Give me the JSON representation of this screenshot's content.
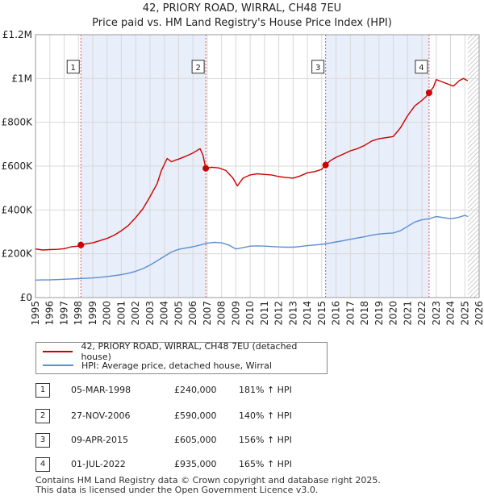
{
  "chart_data": {
    "type": "line",
    "title": "42, PRIORY ROAD, WIRRAL, CH48 7EU",
    "subtitle": "Price paid vs. HM Land Registry's House Price Index (HPI)",
    "xlabel": "",
    "ylabel": "",
    "xlim": [
      1995,
      2026
    ],
    "ylim": [
      0,
      1200000
    ],
    "x_ticks": [
      "1995",
      "1996",
      "1997",
      "1998",
      "1999",
      "2000",
      "2001",
      "2002",
      "2003",
      "2004",
      "2005",
      "2006",
      "2007",
      "2008",
      "2009",
      "2010",
      "2011",
      "2012",
      "2013",
      "2014",
      "2015",
      "2016",
      "2017",
      "2018",
      "2019",
      "2020",
      "2021",
      "2022",
      "2023",
      "2024",
      "2025",
      "2026"
    ],
    "y_ticks": [
      {
        "value": 0,
        "label": "£0"
      },
      {
        "value": 200000,
        "label": "£200K"
      },
      {
        "value": 400000,
        "label": "£400K"
      },
      {
        "value": 600000,
        "label": "£600K"
      },
      {
        "value": 800000,
        "label": "£800K"
      },
      {
        "value": 1000000,
        "label": "£1M"
      },
      {
        "value": 1200000,
        "label": "£1.2M"
      }
    ],
    "series": [
      {
        "name": "42, PRIORY ROAD, WIRRAL, CH48 7EU (detached house)",
        "color": "#cc0000",
        "x": [
          1995.0,
          1995.5,
          1996.0,
          1996.5,
          1997.0,
          1997.5,
          1998.0,
          1998.17,
          1998.5,
          1999.0,
          1999.5,
          2000.0,
          2000.5,
          2001.0,
          2001.5,
          2002.0,
          2002.5,
          2003.0,
          2003.5,
          2003.8,
          2004.2,
          2004.5,
          2004.8,
          2005.0,
          2005.5,
          2006.0,
          2006.5,
          2006.7,
          2006.9,
          2007.3,
          2007.8,
          2008.3,
          2008.8,
          2009.1,
          2009.5,
          2010.0,
          2010.5,
          2011.0,
          2011.5,
          2012.0,
          2012.5,
          2013.0,
          2013.5,
          2014.0,
          2014.5,
          2015.0,
          2015.27,
          2015.6,
          2016.0,
          2016.5,
          2017.0,
          2017.5,
          2018.0,
          2018.5,
          2019.0,
          2019.5,
          2020.0,
          2020.5,
          2021.0,
          2021.5,
          2022.0,
          2022.3,
          2022.5,
          2022.8,
          2023.0,
          2023.4,
          2023.8,
          2024.2,
          2024.6,
          2024.9,
          2025.2
        ],
        "y": [
          222000,
          217000,
          219000,
          220000,
          223000,
          232000,
          235000,
          240000,
          245000,
          250000,
          260000,
          270000,
          285000,
          305000,
          330000,
          365000,
          405000,
          460000,
          520000,
          580000,
          635000,
          620000,
          628000,
          632000,
          645000,
          660000,
          680000,
          650000,
          590000,
          595000,
          592000,
          580000,
          545000,
          510000,
          545000,
          560000,
          565000,
          562000,
          560000,
          552000,
          548000,
          545000,
          555000,
          570000,
          575000,
          585000,
          605000,
          625000,
          640000,
          655000,
          670000,
          680000,
          695000,
          715000,
          725000,
          730000,
          735000,
          775000,
          830000,
          875000,
          900000,
          918000,
          935000,
          960000,
          995000,
          985000,
          975000,
          965000,
          990000,
          1000000,
          990000
        ]
      },
      {
        "name": "HPI: Average price, detached house, Wirral",
        "color": "#5b8fd4",
        "x": [
          1995.0,
          1995.5,
          1996.0,
          1996.5,
          1997.0,
          1997.5,
          1998.0,
          1998.5,
          1999.0,
          1999.5,
          2000.0,
          2000.5,
          2001.0,
          2001.5,
          2002.0,
          2002.5,
          2003.0,
          2003.5,
          2004.0,
          2004.5,
          2005.0,
          2005.5,
          2006.0,
          2006.5,
          2007.0,
          2007.5,
          2008.0,
          2008.5,
          2009.0,
          2009.5,
          2010.0,
          2010.5,
          2011.0,
          2011.5,
          2012.0,
          2012.5,
          2013.0,
          2013.5,
          2014.0,
          2014.5,
          2015.0,
          2015.5,
          2016.0,
          2016.5,
          2017.0,
          2017.5,
          2018.0,
          2018.5,
          2019.0,
          2019.5,
          2020.0,
          2020.5,
          2021.0,
          2021.5,
          2022.0,
          2022.5,
          2023.0,
          2023.5,
          2024.0,
          2024.5,
          2025.0,
          2025.2
        ],
        "y": [
          80000,
          80500,
          81000,
          82000,
          83500,
          85000,
          86500,
          88000,
          90000,
          92500,
          96000,
          100000,
          105000,
          111000,
          120000,
          132000,
          148000,
          168000,
          188000,
          208000,
          220000,
          226000,
          232000,
          240000,
          248000,
          252000,
          250000,
          240000,
          222000,
          228000,
          235000,
          236000,
          235000,
          233000,
          231000,
          230000,
          230000,
          233000,
          237000,
          240000,
          243000,
          248000,
          254000,
          260000,
          266000,
          272000,
          278000,
          285000,
          290000,
          293000,
          295000,
          305000,
          325000,
          345000,
          355000,
          360000,
          370000,
          365000,
          360000,
          365000,
          375000,
          370000
        ]
      }
    ],
    "sales": [
      {
        "label": "1",
        "date": "05-MAR-1998",
        "x": 1998.17,
        "price": 240000,
        "price_text": "£240,000",
        "hpi_text": "181% ↑ HPI"
      },
      {
        "label": "2",
        "date": "27-NOV-2006",
        "x": 2006.9,
        "price": 590000,
        "price_text": "£590,000",
        "hpi_text": "140% ↑ HPI"
      },
      {
        "label": "3",
        "date": "09-APR-2015",
        "x": 2015.27,
        "price": 605000,
        "price_text": "£605,000",
        "hpi_text": "156% ↑ HPI"
      },
      {
        "label": "4",
        "date": "01-JUL-2022",
        "x": 2022.5,
        "price": 935000,
        "price_text": "£935,000",
        "hpi_text": "165% ↑ HPI"
      }
    ],
    "future_from": 2025.2
  },
  "legend": {
    "item1": "42, PRIORY ROAD, WIRRAL, CH48 7EU (detached house)",
    "item2": "HPI: Average price, detached house, Wirral"
  },
  "footer": {
    "line1": "Contains HM Land Registry data © Crown copyright and database right 2025.",
    "line2": "This data is licensed under the Open Government Licence v3.0."
  },
  "colors": {
    "property_line": "#cc0000",
    "hpi_line": "#5b8fd4",
    "shade": "#e8eefa",
    "grid": "#d8d8d8"
  }
}
